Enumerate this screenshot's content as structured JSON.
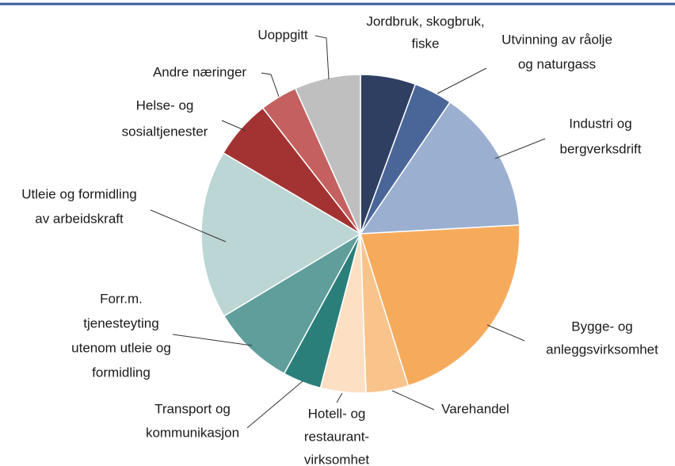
{
  "chart_data": {
    "type": "pie",
    "categories": [
      [
        "Jordbruk, skogbruk,",
        "fiske"
      ],
      [
        "Utvinning av råolje",
        "og naturgass"
      ],
      [
        "Industri og",
        "bergverksdrift"
      ],
      [
        "Bygge- og",
        "anleggsvirksomhet"
      ],
      [
        "Varehandel"
      ],
      [
        "Hotell- og",
        "restaurant-",
        "virksomhet"
      ],
      [
        "Transport og",
        "kommunikasjon"
      ],
      [
        "Forr.m.",
        "tjenesteyting",
        "utenom  utleie og",
        "formidling"
      ],
      [
        "Utleie og formidling",
        "av arbeidskraft"
      ],
      [
        "Helse- og",
        "sosialtjenester"
      ],
      [
        "Andre næringer"
      ],
      [
        "Uoppgitt"
      ]
    ],
    "values": [
      5.6,
      3.9,
      14.6,
      21,
      4.3,
      4.6,
      3.9,
      8.4,
      17.1,
      6,
      3.8,
      6.7
    ],
    "colors": [
      "#2e3f62",
      "#4a6699",
      "#9bafd0",
      "#f6ab5c",
      "#f8c48c",
      "#fde0c4",
      "#2a7f7b",
      "#5f9e9a",
      "#bcd5d5",
      "#a33332",
      "#c46160",
      "#bfbfbf"
    ]
  }
}
